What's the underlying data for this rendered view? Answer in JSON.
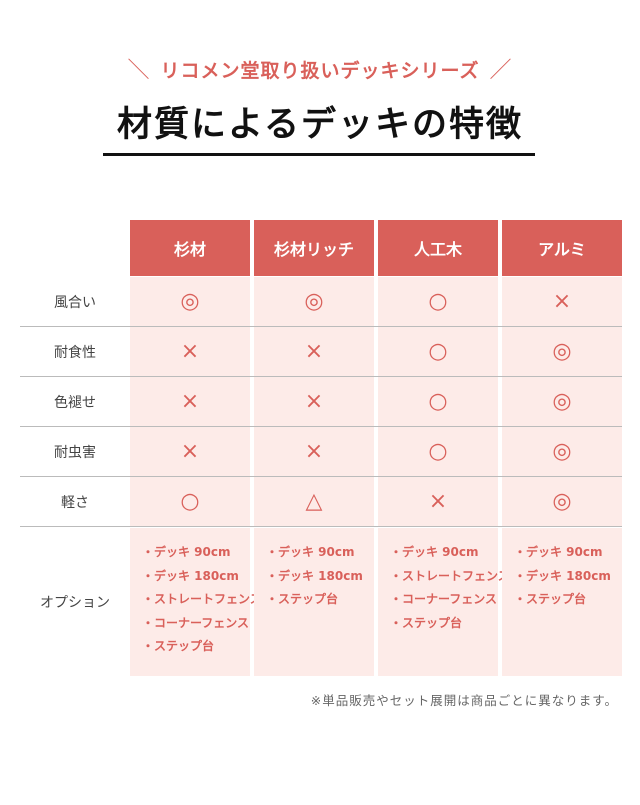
{
  "subtitle": "リコメン堂取り扱いデッキシリーズ",
  "subtitle_slash_left": "＼",
  "subtitle_slash_right": "／",
  "title": "材質によるデッキの特徴",
  "columns": [
    "杉材",
    "杉材リッチ",
    "人工木",
    "アルミ"
  ],
  "rows": [
    {
      "label": "風合い",
      "values": [
        "◎",
        "◎",
        "○",
        "×"
      ]
    },
    {
      "label": "耐食性",
      "values": [
        "×",
        "×",
        "○",
        "◎"
      ]
    },
    {
      "label": "色褪せ",
      "values": [
        "×",
        "×",
        "○",
        "◎"
      ]
    },
    {
      "label": "耐虫害",
      "values": [
        "×",
        "×",
        "○",
        "◎"
      ]
    },
    {
      "label": "軽さ",
      "values": [
        "○",
        "△",
        "×",
        "◎"
      ]
    }
  ],
  "options": {
    "label": "オプション",
    "columns": [
      [
        "・デッキ 90cm",
        "・デッキ 180cm",
        "・ストレートフェンス",
        "・コーナーフェンス",
        "・ステップ台"
      ],
      [
        "・デッキ 90cm",
        "・デッキ 180cm",
        "・ステップ台"
      ],
      [
        "・デッキ 90cm",
        "・ストレートフェンス",
        "・コーナーフェンス",
        "・ステップ台"
      ],
      [
        "・デッキ 90cm",
        "・デッキ 180cm",
        "・ステップ台"
      ]
    ]
  },
  "note": "※単品販売やセット展開は商品ごとに異なります。",
  "colors": {
    "accent": "#d9605a",
    "cell_bg": "#fdebe8"
  }
}
